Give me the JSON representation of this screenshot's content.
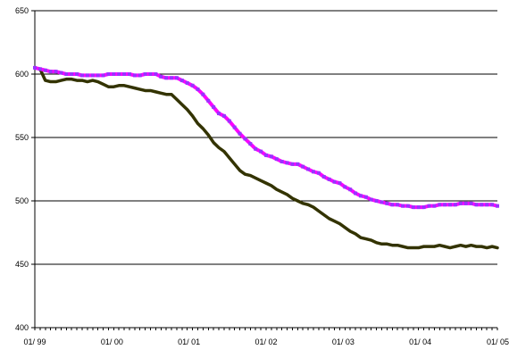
{
  "chart_data": {
    "type": "line",
    "title": "",
    "xlabel": "",
    "ylabel": "",
    "ylim": [
      400,
      650
    ],
    "y_ticks": [
      "400",
      "450",
      "500",
      "550",
      "600",
      "650"
    ],
    "x_tick_labels": [
      "01/ 99",
      "01/ 00",
      "01/ 01",
      "01/ 02",
      "01/ 03",
      "01/ 04",
      "01/ 05"
    ],
    "x_start": "01/99",
    "x_end": "01/05",
    "grid": "horizontal",
    "series": [
      {
        "color": "#ff00ff",
        "marker_color": "#9933ff",
        "values": [
          605,
          604,
          603,
          602,
          602,
          601,
          600,
          600,
          600,
          599,
          599,
          599,
          599,
          599,
          600,
          600,
          600,
          600,
          600,
          599,
          599,
          600,
          600,
          600,
          598,
          597,
          597,
          597,
          595,
          593,
          591,
          588,
          584,
          579,
          574,
          569,
          567,
          563,
          558,
          553,
          549,
          545,
          541,
          539,
          536,
          535,
          533,
          531,
          530,
          529,
          529,
          527,
          525,
          523,
          522,
          519,
          517,
          515,
          514,
          511,
          509,
          506,
          504,
          503,
          501,
          500,
          499,
          498,
          497,
          497,
          496,
          496,
          495,
          495,
          495,
          496,
          496,
          497,
          497,
          497,
          497,
          498,
          498,
          498,
          497,
          497,
          497,
          497,
          496
        ]
      },
      {
        "color": "#333300",
        "values": [
          605,
          604,
          595,
          594,
          594,
          595,
          596,
          596,
          595,
          595,
          594,
          595,
          594,
          592,
          590,
          590,
          591,
          591,
          590,
          589,
          588,
          587,
          587,
          586,
          585,
          584,
          584,
          580,
          576,
          572,
          567,
          561,
          557,
          552,
          546,
          542,
          539,
          534,
          529,
          524,
          521,
          520,
          518,
          516,
          514,
          512,
          509,
          507,
          505,
          502,
          500,
          498,
          497,
          495,
          492,
          489,
          486,
          484,
          482,
          479,
          476,
          474,
          471,
          470,
          469,
          467,
          466,
          466,
          465,
          465,
          464,
          463,
          463,
          463,
          464,
          464,
          464,
          465,
          464,
          463,
          464,
          465,
          464,
          465,
          464,
          464,
          463,
          464,
          463
        ]
      }
    ]
  }
}
